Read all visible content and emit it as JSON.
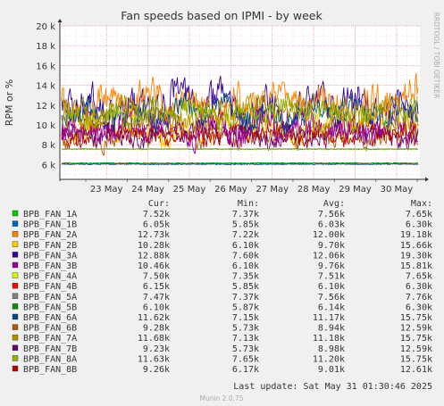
{
  "chart_data": {
    "type": "line",
    "title": "Fan speeds based on IPMI - by week",
    "ylabel": "RPM or %",
    "side_label": "RRDTOOL / TOBI OETIKER",
    "ylim": [
      4500,
      20000
    ],
    "yticks": [
      {
        "v": 6000,
        "label": "6 k"
      },
      {
        "v": 8000,
        "label": "8 k"
      },
      {
        "v": 10000,
        "label": "10 k"
      },
      {
        "v": 12000,
        "label": "12 k"
      },
      {
        "v": 14000,
        "label": "14 k"
      },
      {
        "v": 16000,
        "label": "16 k"
      },
      {
        "v": 18000,
        "label": "18 k"
      },
      {
        "v": 20000,
        "label": "20 k"
      }
    ],
    "xdomain": [
      "2025-05-22T09:00",
      "2025-05-31T01:30"
    ],
    "xticks": [
      {
        "t": "2025-05-23T12:00",
        "label": "23 May"
      },
      {
        "t": "2025-05-24T12:00",
        "label": "24 May"
      },
      {
        "t": "2025-05-25T12:00",
        "label": "25 May"
      },
      {
        "t": "2025-05-26T12:00",
        "label": "26 May"
      },
      {
        "t": "2025-05-27T12:00",
        "label": "27 May"
      },
      {
        "t": "2025-05-28T12:00",
        "label": "28 May"
      },
      {
        "t": "2025-05-29T12:00",
        "label": "29 May"
      },
      {
        "t": "2025-05-30T12:00",
        "label": "30 May"
      }
    ],
    "legend_headers": {
      "cur": "Cur:",
      "min": "Min:",
      "avg": "Avg:",
      "max": "Max:"
    },
    "series": [
      {
        "name": "BPB_FAN_1A",
        "color": "#00cc00",
        "cur": "7.52k",
        "min": "7.37k",
        "avg": "7.56k",
        "max": "7.65k",
        "avg_value": 7560,
        "min_value": 7370,
        "max_value": 7650
      },
      {
        "name": "BPB_FAN_1B",
        "color": "#0066b3",
        "cur": "6.05k",
        "min": "5.85k",
        "avg": "6.03k",
        "max": "6.30k",
        "avg_value": 6030,
        "min_value": 5850,
        "max_value": 6300
      },
      {
        "name": "BPB_FAN_2A",
        "color": "#ff8000",
        "cur": "12.73k",
        "min": "7.22k",
        "avg": "12.00k",
        "max": "19.18k",
        "avg_value": 12000,
        "min_value": 7220,
        "max_value": 19180
      },
      {
        "name": "BPB_FAN_2B",
        "color": "#ffcc00",
        "cur": "10.28k",
        "min": "6.10k",
        "avg": "9.70k",
        "max": "15.66k",
        "avg_value": 9700,
        "min_value": 6100,
        "max_value": 15660
      },
      {
        "name": "BPB_FAN_3A",
        "color": "#330099",
        "cur": "12.88k",
        "min": "7.60k",
        "avg": "12.06k",
        "max": "19.30k",
        "avg_value": 12060,
        "min_value": 7600,
        "max_value": 19300
      },
      {
        "name": "BPB_FAN_3B",
        "color": "#990099",
        "cur": "10.46k",
        "min": "6.10k",
        "avg": "9.76k",
        "max": "15.81k",
        "avg_value": 9760,
        "min_value": 6100,
        "max_value": 15810
      },
      {
        "name": "BPB_FAN_4A",
        "color": "#ccff00",
        "cur": "7.50k",
        "min": "7.35k",
        "avg": "7.51k",
        "max": "7.65k",
        "avg_value": 7510,
        "min_value": 7350,
        "max_value": 7650
      },
      {
        "name": "BPB_FAN_4B",
        "color": "#ff0000",
        "cur": "6.15k",
        "min": "5.85k",
        "avg": "6.10k",
        "max": "6.30k",
        "avg_value": 6100,
        "min_value": 5850,
        "max_value": 6300
      },
      {
        "name": "BPB_FAN_5A",
        "color": "#808080",
        "cur": "7.47k",
        "min": "7.37k",
        "avg": "7.56k",
        "max": "7.76k",
        "avg_value": 7560,
        "min_value": 7370,
        "max_value": 7760
      },
      {
        "name": "BPB_FAN_5B",
        "color": "#008f00",
        "cur": "6.10k",
        "min": "5.87k",
        "avg": "6.14k",
        "max": "6.30k",
        "avg_value": 6140,
        "min_value": 5870,
        "max_value": 6300
      },
      {
        "name": "BPB_FAN_6A",
        "color": "#00487d",
        "cur": "11.62k",
        "min": "7.15k",
        "avg": "11.17k",
        "max": "15.75k",
        "avg_value": 11170,
        "min_value": 7150,
        "max_value": 15750
      },
      {
        "name": "BPB_FAN_6B",
        "color": "#b35a00",
        "cur": "9.28k",
        "min": "5.73k",
        "avg": "8.94k",
        "max": "12.59k",
        "avg_value": 8940,
        "min_value": 5730,
        "max_value": 12590
      },
      {
        "name": "BPB_FAN_7A",
        "color": "#b38f00",
        "cur": "11.68k",
        "min": "7.13k",
        "avg": "11.18k",
        "max": "15.75k",
        "avg_value": 11180,
        "min_value": 7130,
        "max_value": 15750
      },
      {
        "name": "BPB_FAN_7B",
        "color": "#6b006b",
        "cur": "9.23k",
        "min": "5.73k",
        "avg": "8.98k",
        "max": "12.59k",
        "avg_value": 8980,
        "min_value": 5730,
        "max_value": 12590
      },
      {
        "name": "BPB_FAN_8A",
        "color": "#8fb300",
        "cur": "11.63k",
        "min": "7.65k",
        "avg": "11.20k",
        "max": "15.75k",
        "avg_value": 11200,
        "min_value": 7650,
        "max_value": 15750
      },
      {
        "name": "BPB_FAN_8B",
        "color": "#b30000",
        "cur": "9.26k",
        "min": "6.17k",
        "avg": "9.01k",
        "max": "12.61k",
        "avg_value": 9010,
        "min_value": 6170,
        "max_value": 12610
      }
    ],
    "last_update": "Last update: Sat May 31 01:30:46 2025",
    "footer": "Munin 2.0.75"
  }
}
